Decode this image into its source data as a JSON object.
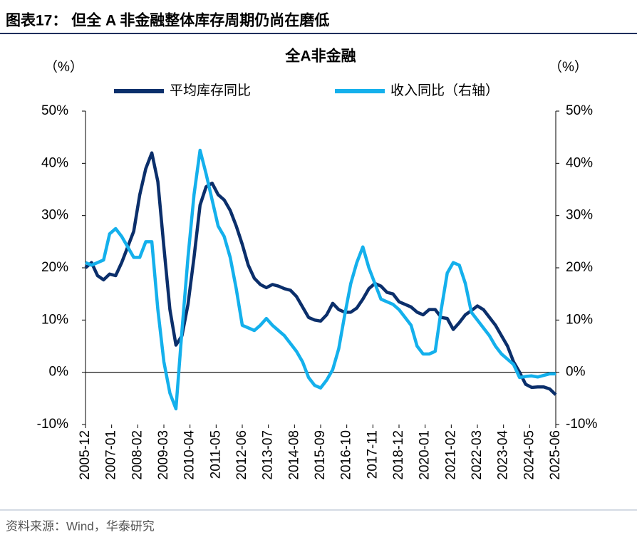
{
  "header": {
    "title": "图表17：  但全 A 非金融整体库存周期仍尚在磨低"
  },
  "footer": {
    "source": "资料来源：Wind，华泰研究"
  },
  "chart_data": {
    "type": "line",
    "title": "全A非金融",
    "y_label": "（%）",
    "y2_label": "（%）",
    "legend": "top",
    "grid": false,
    "x": [
      "2005-12",
      "2006-03",
      "2006-06",
      "2006-09",
      "2006-12",
      "2007-03",
      "2007-06",
      "2007-09",
      "2007-12",
      "2008-03",
      "2008-06",
      "2008-09",
      "2008-12",
      "2009-03",
      "2009-06",
      "2009-09",
      "2009-12",
      "2010-03",
      "2010-06",
      "2010-09",
      "2010-12",
      "2011-03",
      "2011-06",
      "2011-09",
      "2011-12",
      "2012-03",
      "2012-06",
      "2012-09",
      "2012-12",
      "2013-03",
      "2013-06",
      "2013-09",
      "2013-12",
      "2014-03",
      "2014-06",
      "2014-09",
      "2014-12",
      "2015-03",
      "2015-06",
      "2015-09",
      "2015-12",
      "2016-03",
      "2016-06",
      "2016-09",
      "2016-12",
      "2017-03",
      "2017-06",
      "2017-09",
      "2017-12",
      "2018-03",
      "2018-06",
      "2018-09",
      "2018-12",
      "2019-03",
      "2019-06",
      "2019-09",
      "2019-12",
      "2020-03",
      "2020-06",
      "2020-09",
      "2020-12",
      "2021-03",
      "2021-06",
      "2021-09",
      "2021-12",
      "2022-03",
      "2022-06",
      "2022-09",
      "2022-12",
      "2023-03",
      "2023-06",
      "2023-09",
      "2023-12",
      "2024-03",
      "2024-06",
      "2024-09",
      "2024-12",
      "2025-03",
      "2025-06"
    ],
    "xlim": [
      "2005-12",
      "2025-06"
    ],
    "xticks": [
      "2005-12",
      "2007-01",
      "2008-02",
      "2009-03",
      "2010-04",
      "2011-05",
      "2012-06",
      "2013-07",
      "2014-08",
      "2015-09",
      "2016-10",
      "2017-11",
      "2018-12",
      "2020-01",
      "2021-02",
      "2022-03",
      "2023-04",
      "2024-05",
      "2025-06"
    ],
    "ylim": [
      -10,
      50
    ],
    "yticks": [
      {
        "value": -10,
        "label": "-10%"
      },
      {
        "value": 0,
        "label": "0%"
      },
      {
        "value": 10,
        "label": "10%"
      },
      {
        "value": 20,
        "label": "20%"
      },
      {
        "value": 30,
        "label": "30%"
      },
      {
        "value": 40,
        "label": "40%"
      },
      {
        "value": 50,
        "label": "50%"
      }
    ],
    "y2lim": [
      -10,
      50
    ],
    "y2ticks": [
      {
        "value": -10,
        "label": "-10%"
      },
      {
        "value": 0,
        "label": "0%"
      },
      {
        "value": 10,
        "label": "10%"
      },
      {
        "value": 20,
        "label": "20%"
      },
      {
        "value": 30,
        "label": "30%"
      },
      {
        "value": 40,
        "label": "40%"
      },
      {
        "value": 50,
        "label": "50%"
      }
    ],
    "series": [
      {
        "name": "平均库存同比",
        "color": "#0b2f6b",
        "values": [
          20,
          21,
          18.5,
          17.7,
          18.8,
          18.5,
          21,
          24,
          27,
          34,
          39,
          42,
          36.5,
          24,
          12,
          5.2,
          7,
          13,
          22,
          32,
          35.5,
          36.2,
          34,
          33,
          31,
          28,
          24.5,
          20.5,
          18,
          16.8,
          16.2,
          16.8,
          16.5,
          16,
          15.7,
          14.5,
          12.5,
          10.5,
          10,
          9.8,
          11,
          13.2,
          12,
          11.5,
          11.5,
          12.3,
          14,
          16,
          17,
          16.5,
          15.3,
          15,
          13.5,
          13,
          12.5,
          11.5,
          11,
          12,
          12,
          10.5,
          10.3,
          8.2,
          9.5,
          11,
          11.8,
          12.7,
          12,
          10.5,
          9,
          7,
          5,
          2,
          0,
          -2.3,
          -2.9,
          -2.8,
          -2.8,
          -3.2,
          -4.3
        ]
      },
      {
        "name": "收入同比（右轴）",
        "color": "#14b0ec",
        "axis": "y2",
        "values": [
          21,
          20.5,
          21,
          21.5,
          26.5,
          27.5,
          26,
          24,
          22,
          22,
          25,
          25,
          12,
          2,
          -4,
          -7,
          8,
          22,
          34,
          42.5,
          38,
          33,
          28,
          26,
          22,
          16,
          9,
          8.5,
          8,
          9,
          10.3,
          9,
          8,
          7,
          5.5,
          4,
          2,
          -1,
          -2.5,
          -3,
          -1.5,
          0.5,
          4.5,
          11,
          17,
          21,
          24,
          20,
          17,
          14,
          13.5,
          13,
          12,
          10.5,
          9,
          5,
          3.5,
          3.5,
          4,
          12,
          19,
          21,
          20.5,
          17,
          11.5,
          10,
          8.5,
          7,
          5,
          3.5,
          2.5,
          1.5,
          -1,
          -0.8,
          -0.7,
          -0.9,
          -0.6,
          -0.3,
          -0.3
        ]
      }
    ]
  }
}
